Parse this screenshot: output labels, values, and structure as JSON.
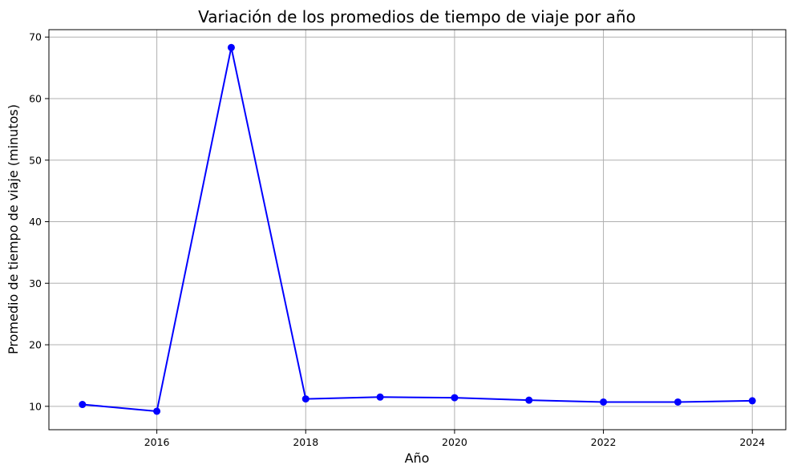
{
  "chart_data": {
    "type": "line",
    "title": "Variación de los promedios de tiempo de viaje por año",
    "xlabel": "Año",
    "ylabel": "Promedio de tiempo de viaje (minutos)",
    "x": [
      2015,
      2016,
      2017,
      2018,
      2019,
      2020,
      2021,
      2022,
      2023,
      2024
    ],
    "series": [
      {
        "values": [
          10.3,
          9.2,
          68.3,
          11.2,
          11.5,
          11.4,
          11.0,
          10.7,
          10.7,
          10.9
        ],
        "color": "#0000ff",
        "marker": "circle"
      }
    ],
    "xlim": [
      2014.55,
      2024.45
    ],
    "ylim": [
      6.2,
      71.2
    ],
    "xticks": [
      2016,
      2018,
      2020,
      2022,
      2024
    ],
    "yticks": [
      10,
      20,
      30,
      40,
      50,
      60,
      70
    ],
    "grid": true,
    "grid_color": "#b0b0b0"
  }
}
